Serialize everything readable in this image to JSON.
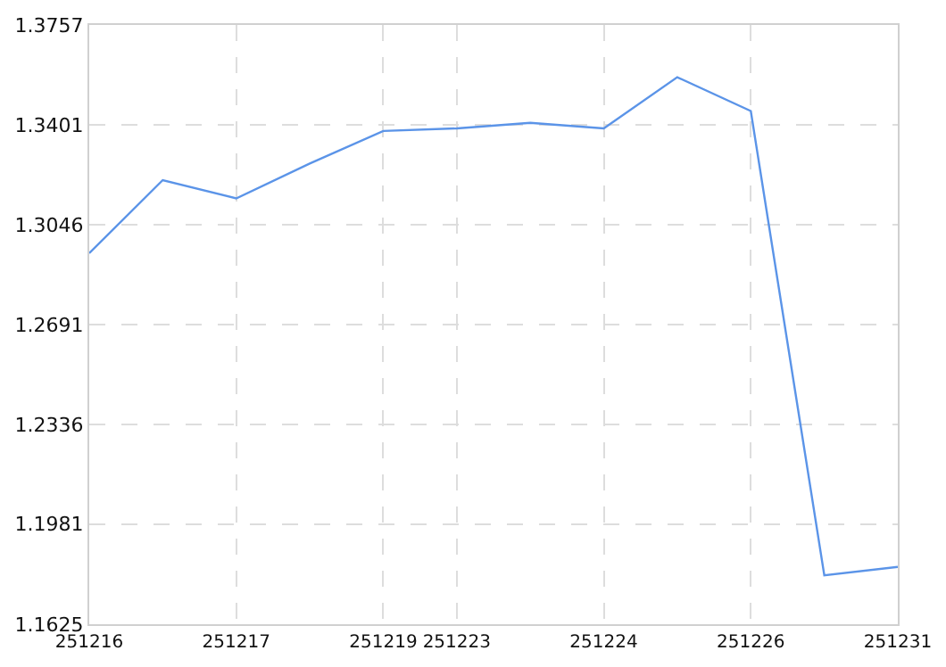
{
  "chart_data": {
    "type": "line",
    "categories": [
      "251216",
      null,
      "251217",
      null,
      "251219",
      "251223",
      null,
      "251224",
      null,
      "251226",
      null,
      "251231"
    ],
    "series": [
      {
        "color": "#5b94e8",
        "values": [
          1.2945,
          1.3205,
          1.314,
          1.3264,
          1.338,
          1.3389,
          1.3409,
          1.3389,
          1.3571,
          1.3451,
          1.1799,
          1.1829
        ]
      }
    ],
    "ylim": [
      1.1625,
      1.3757
    ],
    "yticks": [
      1.1625,
      1.1981,
      1.2336,
      1.2691,
      1.3046,
      1.3401,
      1.3757
    ],
    "grid": true,
    "marker": "none",
    "line_style": "solid"
  }
}
